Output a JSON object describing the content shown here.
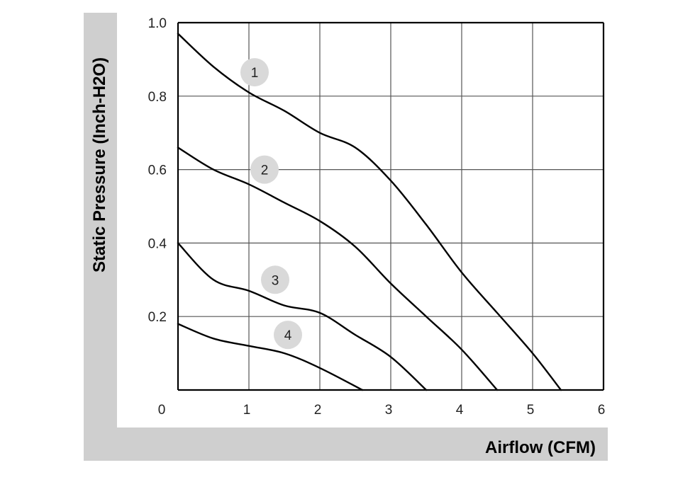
{
  "chart_data": {
    "type": "line",
    "xlabel": "Airflow (CFM)",
    "ylabel": "Static Pressure (Inch-H2O)",
    "xlim": [
      0,
      6
    ],
    "ylim": [
      0,
      1.0
    ],
    "x_ticks": [
      "0",
      "1",
      "2",
      "3",
      "4",
      "5",
      "6"
    ],
    "y_ticks": [
      "0.2",
      "0.4",
      "0.6",
      "0.8",
      "1.0"
    ],
    "grid": true,
    "series": [
      {
        "name": "1",
        "points": [
          [
            0,
            0.97
          ],
          [
            0.5,
            0.88
          ],
          [
            1.0,
            0.81
          ],
          [
            1.5,
            0.76
          ],
          [
            2.0,
            0.7
          ],
          [
            2.5,
            0.66
          ],
          [
            3.0,
            0.57
          ],
          [
            3.5,
            0.45
          ],
          [
            4.0,
            0.32
          ],
          [
            4.5,
            0.21
          ],
          [
            5.0,
            0.1
          ],
          [
            5.4,
            0.0
          ]
        ]
      },
      {
        "name": "2",
        "points": [
          [
            0,
            0.66
          ],
          [
            0.5,
            0.6
          ],
          [
            1.0,
            0.56
          ],
          [
            1.5,
            0.51
          ],
          [
            2.0,
            0.46
          ],
          [
            2.5,
            0.39
          ],
          [
            3.0,
            0.29
          ],
          [
            3.5,
            0.2
          ],
          [
            4.0,
            0.11
          ],
          [
            4.5,
            0.0
          ]
        ]
      },
      {
        "name": "3",
        "points": [
          [
            0,
            0.4
          ],
          [
            0.5,
            0.3
          ],
          [
            1.0,
            0.27
          ],
          [
            1.5,
            0.23
          ],
          [
            2.0,
            0.21
          ],
          [
            2.5,
            0.15
          ],
          [
            3.0,
            0.09
          ],
          [
            3.5,
            0.0
          ]
        ]
      },
      {
        "name": "4",
        "points": [
          [
            0,
            0.18
          ],
          [
            0.5,
            0.14
          ],
          [
            1.0,
            0.12
          ],
          [
            1.5,
            0.1
          ],
          [
            2.0,
            0.06
          ],
          [
            2.6,
            0.0
          ]
        ]
      }
    ],
    "curve_labels": [
      {
        "text": "1",
        "x": 1.08,
        "y": 0.865
      },
      {
        "text": "2",
        "x": 1.22,
        "y": 0.6
      },
      {
        "text": "3",
        "x": 1.37,
        "y": 0.3
      },
      {
        "text": "4",
        "x": 1.55,
        "y": 0.15
      }
    ],
    "colors": {
      "line": "#000000",
      "grid": "#555555",
      "frame": "#cfcfcf",
      "badge": "#d9d9d9"
    }
  }
}
